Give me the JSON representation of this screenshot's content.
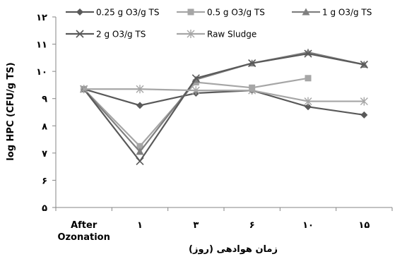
{
  "chart_data": {
    "type": "line",
    "ylabel": "log HPC (CFU/g TS)",
    "xlabel": "زمان هوادهی (روز)",
    "ylim": [
      5,
      12
    ],
    "y_ticks": [
      "۵",
      "۶",
      "۷",
      "۸",
      "۹",
      "۱۰",
      "۱۱",
      "۱۲"
    ],
    "categories": [
      "After Ozonation",
      "۱",
      "۳",
      "۶",
      "۱۰",
      "۱۵"
    ],
    "grid": false,
    "legend_position": "top",
    "series": [
      {
        "name": "0.25 g O3/g TS",
        "color": "#595959",
        "marker": "diamond",
        "values": [
          9.35,
          8.75,
          9.2,
          9.3,
          8.7,
          8.4
        ]
      },
      {
        "name": "0.5 g O3/g TS",
        "color": "#a6a6a6",
        "marker": "square",
        "values": [
          9.35,
          7.25,
          9.6,
          9.4,
          9.75,
          null
        ]
      },
      {
        "name": "1 g O3/g TS",
        "color": "#7f7f7f",
        "marker": "triangle",
        "values": [
          9.35,
          7.05,
          9.7,
          10.3,
          10.7,
          10.25
        ]
      },
      {
        "name": "2 g O3/g TS",
        "color": "#595959",
        "marker": "x",
        "values": [
          9.35,
          6.7,
          9.75,
          10.3,
          10.65,
          10.25
        ]
      },
      {
        "name": "Raw Sludge",
        "color": "#a6a6a6",
        "marker": "star",
        "values": [
          9.35,
          9.35,
          9.3,
          9.3,
          8.9,
          8.9
        ]
      }
    ]
  }
}
